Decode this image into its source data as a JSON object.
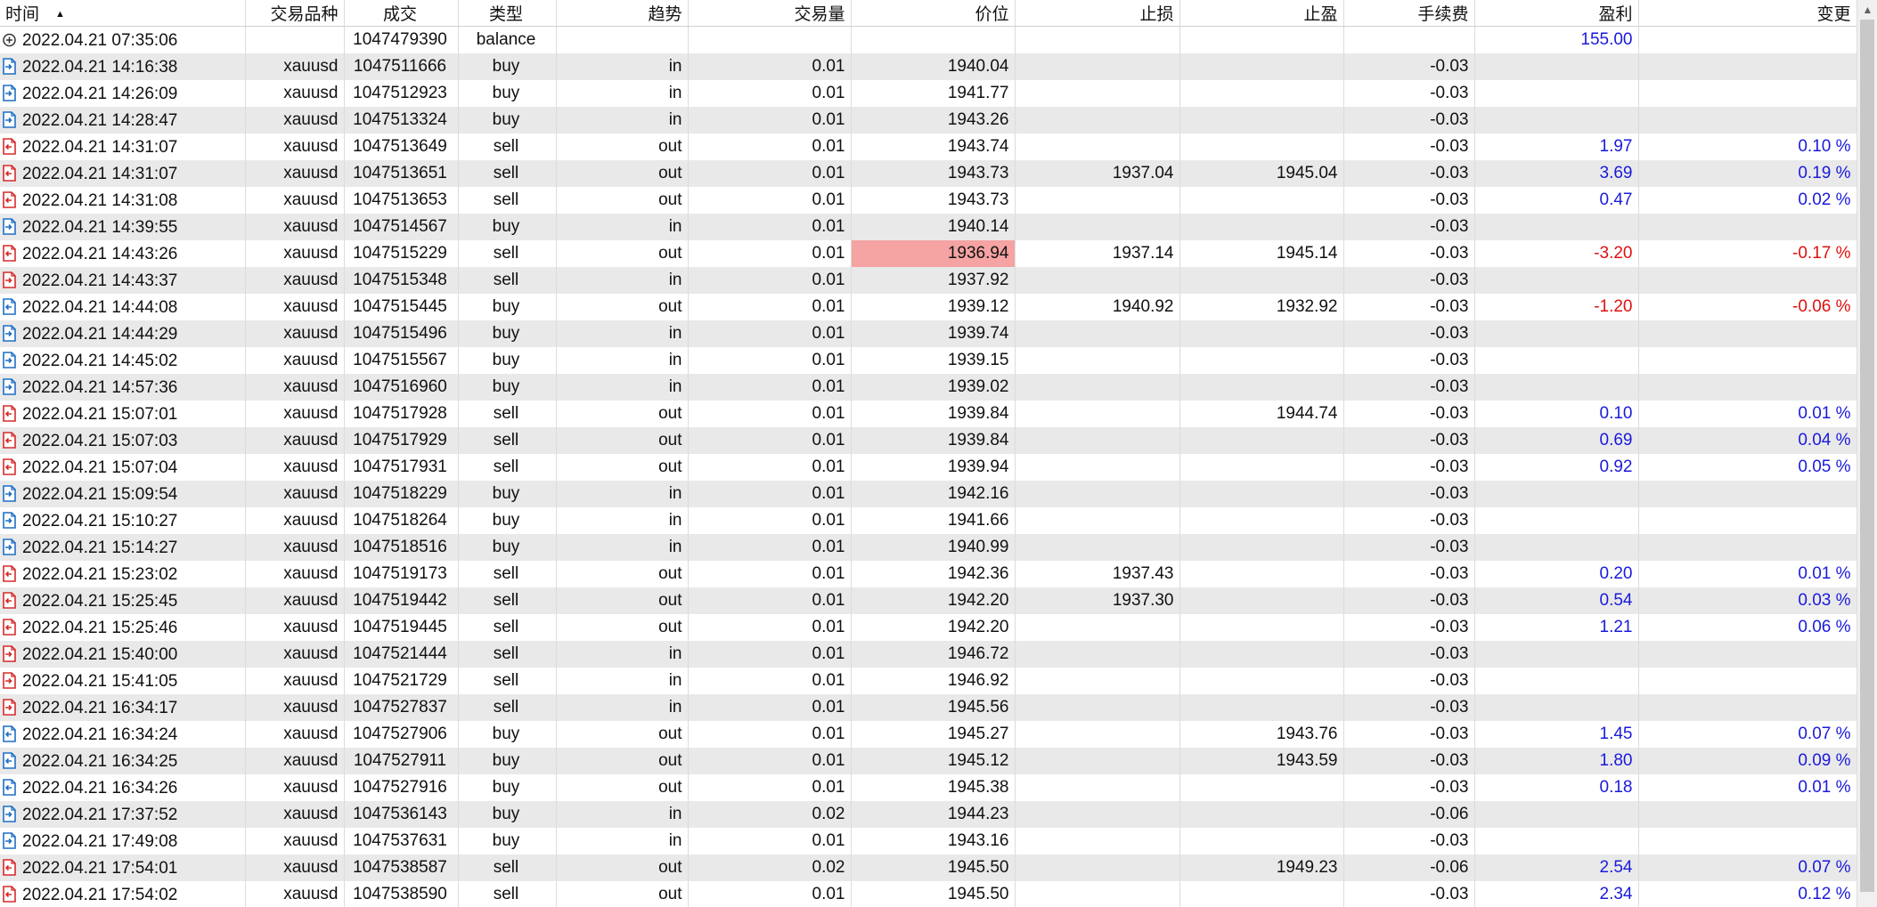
{
  "columns": [
    "时间",
    "交易品种",
    "成交",
    "类型",
    "趋势",
    "交易量",
    "价位",
    "止损",
    "止盈",
    "手续费",
    "盈利",
    "变更"
  ],
  "colors": {
    "buy_icon": "#1f6fc4",
    "sell_icon": "#d62b2b",
    "profit_positive": "#1a1adc",
    "profit_negative": "#e01010",
    "highlight": "#f5a3a3"
  },
  "rows": [
    {
      "icon": "balance-icon",
      "time": "2022.04.21 07:35:06",
      "symbol": "",
      "deal": "1047479390",
      "type": "balance",
      "direction": "",
      "volume": "",
      "price": "",
      "sl": "",
      "tp": "",
      "commission": "",
      "profit": "155.00",
      "change": ""
    },
    {
      "icon": "buy-in-icon",
      "time": "2022.04.21 14:16:38",
      "symbol": "xauusd",
      "deal": "1047511666",
      "type": "buy",
      "direction": "in",
      "volume": "0.01",
      "price": "1940.04",
      "sl": "",
      "tp": "",
      "commission": "-0.03",
      "profit": "",
      "change": ""
    },
    {
      "icon": "buy-in-icon",
      "time": "2022.04.21 14:26:09",
      "symbol": "xauusd",
      "deal": "1047512923",
      "type": "buy",
      "direction": "in",
      "volume": "0.01",
      "price": "1941.77",
      "sl": "",
      "tp": "",
      "commission": "-0.03",
      "profit": "",
      "change": ""
    },
    {
      "icon": "buy-in-icon",
      "time": "2022.04.21 14:28:47",
      "symbol": "xauusd",
      "deal": "1047513324",
      "type": "buy",
      "direction": "in",
      "volume": "0.01",
      "price": "1943.26",
      "sl": "",
      "tp": "",
      "commission": "-0.03",
      "profit": "",
      "change": ""
    },
    {
      "icon": "sell-out-icon",
      "time": "2022.04.21 14:31:07",
      "symbol": "xauusd",
      "deal": "1047513649",
      "type": "sell",
      "direction": "out",
      "volume": "0.01",
      "price": "1943.74",
      "sl": "",
      "tp": "",
      "commission": "-0.03",
      "profit": "1.97",
      "change": "0.10 %"
    },
    {
      "icon": "sell-out-icon",
      "time": "2022.04.21 14:31:07",
      "symbol": "xauusd",
      "deal": "1047513651",
      "type": "sell",
      "direction": "out",
      "volume": "0.01",
      "price": "1943.73",
      "sl": "1937.04",
      "tp": "1945.04",
      "commission": "-0.03",
      "profit": "3.69",
      "change": "0.19 %"
    },
    {
      "icon": "sell-out-icon",
      "time": "2022.04.21 14:31:08",
      "symbol": "xauusd",
      "deal": "1047513653",
      "type": "sell",
      "direction": "out",
      "volume": "0.01",
      "price": "1943.73",
      "sl": "",
      "tp": "",
      "commission": "-0.03",
      "profit": "0.47",
      "change": "0.02 %"
    },
    {
      "icon": "buy-in-icon",
      "time": "2022.04.21 14:39:55",
      "symbol": "xauusd",
      "deal": "1047514567",
      "type": "buy",
      "direction": "in",
      "volume": "0.01",
      "price": "1940.14",
      "sl": "",
      "tp": "",
      "commission": "-0.03",
      "profit": "",
      "change": ""
    },
    {
      "icon": "sell-out-icon",
      "time": "2022.04.21 14:43:26",
      "symbol": "xauusd",
      "deal": "1047515229",
      "type": "sell",
      "direction": "out",
      "volume": "0.01",
      "price": "1936.94",
      "sl": "1937.14",
      "tp": "1945.14",
      "commission": "-0.03",
      "profit": "-3.20",
      "change": "-0.17 %",
      "highlight_price": true
    },
    {
      "icon": "sell-in-icon",
      "time": "2022.04.21 14:43:37",
      "symbol": "xauusd",
      "deal": "1047515348",
      "type": "sell",
      "direction": "in",
      "volume": "0.01",
      "price": "1937.92",
      "sl": "",
      "tp": "",
      "commission": "-0.03",
      "profit": "",
      "change": ""
    },
    {
      "icon": "buy-out-icon",
      "time": "2022.04.21 14:44:08",
      "symbol": "xauusd",
      "deal": "1047515445",
      "type": "buy",
      "direction": "out",
      "volume": "0.01",
      "price": "1939.12",
      "sl": "1940.92",
      "tp": "1932.92",
      "commission": "-0.03",
      "profit": "-1.20",
      "change": "-0.06 %"
    },
    {
      "icon": "buy-in-icon",
      "time": "2022.04.21 14:44:29",
      "symbol": "xauusd",
      "deal": "1047515496",
      "type": "buy",
      "direction": "in",
      "volume": "0.01",
      "price": "1939.74",
      "sl": "",
      "tp": "",
      "commission": "-0.03",
      "profit": "",
      "change": ""
    },
    {
      "icon": "buy-in-icon",
      "time": "2022.04.21 14:45:02",
      "symbol": "xauusd",
      "deal": "1047515567",
      "type": "buy",
      "direction": "in",
      "volume": "0.01",
      "price": "1939.15",
      "sl": "",
      "tp": "",
      "commission": "-0.03",
      "profit": "",
      "change": ""
    },
    {
      "icon": "buy-in-icon",
      "time": "2022.04.21 14:57:36",
      "symbol": "xauusd",
      "deal": "1047516960",
      "type": "buy",
      "direction": "in",
      "volume": "0.01",
      "price": "1939.02",
      "sl": "",
      "tp": "",
      "commission": "-0.03",
      "profit": "",
      "change": ""
    },
    {
      "icon": "sell-out-icon",
      "time": "2022.04.21 15:07:01",
      "symbol": "xauusd",
      "deal": "1047517928",
      "type": "sell",
      "direction": "out",
      "volume": "0.01",
      "price": "1939.84",
      "sl": "",
      "tp": "1944.74",
      "commission": "-0.03",
      "profit": "0.10",
      "change": "0.01 %"
    },
    {
      "icon": "sell-out-icon",
      "time": "2022.04.21 15:07:03",
      "symbol": "xauusd",
      "deal": "1047517929",
      "type": "sell",
      "direction": "out",
      "volume": "0.01",
      "price": "1939.84",
      "sl": "",
      "tp": "",
      "commission": "-0.03",
      "profit": "0.69",
      "change": "0.04 %"
    },
    {
      "icon": "sell-out-icon",
      "time": "2022.04.21 15:07:04",
      "symbol": "xauusd",
      "deal": "1047517931",
      "type": "sell",
      "direction": "out",
      "volume": "0.01",
      "price": "1939.94",
      "sl": "",
      "tp": "",
      "commission": "-0.03",
      "profit": "0.92",
      "change": "0.05 %"
    },
    {
      "icon": "buy-in-icon",
      "time": "2022.04.21 15:09:54",
      "symbol": "xauusd",
      "deal": "1047518229",
      "type": "buy",
      "direction": "in",
      "volume": "0.01",
      "price": "1942.16",
      "sl": "",
      "tp": "",
      "commission": "-0.03",
      "profit": "",
      "change": ""
    },
    {
      "icon": "buy-in-icon",
      "time": "2022.04.21 15:10:27",
      "symbol": "xauusd",
      "deal": "1047518264",
      "type": "buy",
      "direction": "in",
      "volume": "0.01",
      "price": "1941.66",
      "sl": "",
      "tp": "",
      "commission": "-0.03",
      "profit": "",
      "change": ""
    },
    {
      "icon": "buy-in-icon",
      "time": "2022.04.21 15:14:27",
      "symbol": "xauusd",
      "deal": "1047518516",
      "type": "buy",
      "direction": "in",
      "volume": "0.01",
      "price": "1940.99",
      "sl": "",
      "tp": "",
      "commission": "-0.03",
      "profit": "",
      "change": ""
    },
    {
      "icon": "sell-out-icon",
      "time": "2022.04.21 15:23:02",
      "symbol": "xauusd",
      "deal": "1047519173",
      "type": "sell",
      "direction": "out",
      "volume": "0.01",
      "price": "1942.36",
      "sl": "1937.43",
      "tp": "",
      "commission": "-0.03",
      "profit": "0.20",
      "change": "0.01 %"
    },
    {
      "icon": "sell-out-icon",
      "time": "2022.04.21 15:25:45",
      "symbol": "xauusd",
      "deal": "1047519442",
      "type": "sell",
      "direction": "out",
      "volume": "0.01",
      "price": "1942.20",
      "sl": "1937.30",
      "tp": "",
      "commission": "-0.03",
      "profit": "0.54",
      "change": "0.03 %"
    },
    {
      "icon": "sell-out-icon",
      "time": "2022.04.21 15:25:46",
      "symbol": "xauusd",
      "deal": "1047519445",
      "type": "sell",
      "direction": "out",
      "volume": "0.01",
      "price": "1942.20",
      "sl": "",
      "tp": "",
      "commission": "-0.03",
      "profit": "1.21",
      "change": "0.06 %"
    },
    {
      "icon": "sell-in-icon",
      "time": "2022.04.21 15:40:00",
      "symbol": "xauusd",
      "deal": "1047521444",
      "type": "sell",
      "direction": "in",
      "volume": "0.01",
      "price": "1946.72",
      "sl": "",
      "tp": "",
      "commission": "-0.03",
      "profit": "",
      "change": ""
    },
    {
      "icon": "sell-in-icon",
      "time": "2022.04.21 15:41:05",
      "symbol": "xauusd",
      "deal": "1047521729",
      "type": "sell",
      "direction": "in",
      "volume": "0.01",
      "price": "1946.92",
      "sl": "",
      "tp": "",
      "commission": "-0.03",
      "profit": "",
      "change": ""
    },
    {
      "icon": "sell-in-icon",
      "time": "2022.04.21 16:34:17",
      "symbol": "xauusd",
      "deal": "1047527837",
      "type": "sell",
      "direction": "in",
      "volume": "0.01",
      "price": "1945.56",
      "sl": "",
      "tp": "",
      "commission": "-0.03",
      "profit": "",
      "change": ""
    },
    {
      "icon": "buy-out-icon",
      "time": "2022.04.21 16:34:24",
      "symbol": "xauusd",
      "deal": "1047527906",
      "type": "buy",
      "direction": "out",
      "volume": "0.01",
      "price": "1945.27",
      "sl": "",
      "tp": "1943.76",
      "commission": "-0.03",
      "profit": "1.45",
      "change": "0.07 %"
    },
    {
      "icon": "buy-out-icon",
      "time": "2022.04.21 16:34:25",
      "symbol": "xauusd",
      "deal": "1047527911",
      "type": "buy",
      "direction": "out",
      "volume": "0.01",
      "price": "1945.12",
      "sl": "",
      "tp": "1943.59",
      "commission": "-0.03",
      "profit": "1.80",
      "change": "0.09 %"
    },
    {
      "icon": "buy-out-icon",
      "time": "2022.04.21 16:34:26",
      "symbol": "xauusd",
      "deal": "1047527916",
      "type": "buy",
      "direction": "out",
      "volume": "0.01",
      "price": "1945.38",
      "sl": "",
      "tp": "",
      "commission": "-0.03",
      "profit": "0.18",
      "change": "0.01 %"
    },
    {
      "icon": "buy-in-icon",
      "time": "2022.04.21 17:37:52",
      "symbol": "xauusd",
      "deal": "1047536143",
      "type": "buy",
      "direction": "in",
      "volume": "0.02",
      "price": "1944.23",
      "sl": "",
      "tp": "",
      "commission": "-0.06",
      "profit": "",
      "change": ""
    },
    {
      "icon": "buy-in-icon",
      "time": "2022.04.21 17:49:08",
      "symbol": "xauusd",
      "deal": "1047537631",
      "type": "buy",
      "direction": "in",
      "volume": "0.01",
      "price": "1943.16",
      "sl": "",
      "tp": "",
      "commission": "-0.03",
      "profit": "",
      "change": ""
    },
    {
      "icon": "sell-out-icon",
      "time": "2022.04.21 17:54:01",
      "symbol": "xauusd",
      "deal": "1047538587",
      "type": "sell",
      "direction": "out",
      "volume": "0.02",
      "price": "1945.50",
      "sl": "",
      "tp": "1949.23",
      "commission": "-0.06",
      "profit": "2.54",
      "change": "0.07 %"
    },
    {
      "icon": "sell-out-icon",
      "time": "2022.04.21 17:54:02",
      "symbol": "xauusd",
      "deal": "1047538590",
      "type": "sell",
      "direction": "out",
      "volume": "0.01",
      "price": "1945.50",
      "sl": "",
      "tp": "",
      "commission": "-0.03",
      "profit": "2.34",
      "change": "0.12 %"
    }
  ]
}
